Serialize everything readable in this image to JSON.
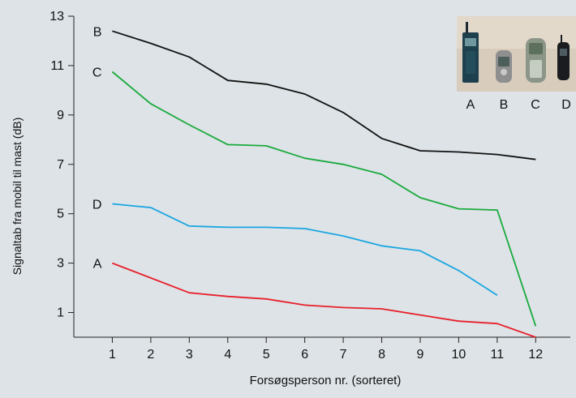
{
  "chart_data": {
    "type": "line",
    "xlabel": "Forsøgsperson nr. (sorteret)",
    "ylabel": "Signaltab fra mobil til mast (dB)",
    "x": [
      1,
      2,
      3,
      4,
      5,
      6,
      7,
      8,
      9,
      10,
      11,
      12
    ],
    "x_ticks": [
      1,
      2,
      3,
      4,
      5,
      6,
      7,
      8,
      9,
      10,
      11,
      12
    ],
    "y_ticks": [
      1,
      3,
      5,
      7,
      9,
      11,
      13
    ],
    "xlim": [
      0.0,
      12.9
    ],
    "ylim": [
      0.0,
      13.0
    ],
    "grid": false,
    "series": [
      {
        "name": "B",
        "color": "#111111",
        "x": [
          1,
          2,
          3,
          4,
          5,
          6,
          7,
          8,
          9,
          10,
          11,
          12
        ],
        "values": [
          12.4,
          11.9,
          11.35,
          10.4,
          10.25,
          9.85,
          9.1,
          8.05,
          7.55,
          7.5,
          7.4,
          7.2
        ]
      },
      {
        "name": "C",
        "color": "#1aaa3c",
        "x": [
          1,
          2,
          3,
          4,
          5,
          6,
          7,
          8,
          9,
          10,
          11,
          12
        ],
        "values": [
          10.75,
          9.45,
          8.6,
          7.8,
          7.75,
          7.25,
          7.0,
          6.6,
          5.65,
          5.2,
          5.15,
          0.45
        ]
      },
      {
        "name": "D",
        "color": "#1aa6e0",
        "x": [
          1,
          2,
          3,
          4,
          5,
          6,
          7,
          8,
          9,
          10,
          11
        ],
        "values": [
          5.4,
          5.25,
          4.5,
          4.45,
          4.45,
          4.4,
          4.1,
          3.7,
          3.5,
          2.7,
          1.7
        ]
      },
      {
        "name": "A",
        "color": "#e8202a",
        "x": [
          1,
          2,
          3,
          4,
          5,
          6,
          7,
          8,
          9,
          10,
          11,
          12
        ],
        "values": [
          3.0,
          2.4,
          1.8,
          1.65,
          1.55,
          1.3,
          1.2,
          1.15,
          0.9,
          0.65,
          0.55,
          0.0
        ]
      }
    ],
    "inset_photo": {
      "labels": [
        "A",
        "B",
        "C",
        "D"
      ]
    }
  }
}
